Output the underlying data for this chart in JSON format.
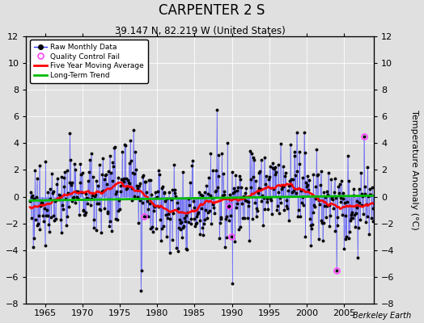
{
  "title": "CARPENTER 2 S",
  "subtitle": "39.147 N, 82.219 W (United States)",
  "ylabel": "Temperature Anomaly (°C)",
  "watermark": "Berkeley Earth",
  "year_start": 1963,
  "year_end": 2009,
  "ylim": [
    -8,
    12
  ],
  "yticks": [
    -8,
    -6,
    -4,
    -2,
    0,
    2,
    4,
    6,
    8,
    10,
    12
  ],
  "xticks": [
    1965,
    1970,
    1975,
    1980,
    1985,
    1990,
    1995,
    2000,
    2005
  ],
  "raw_color": "#3333FF",
  "moving_avg_color": "#FF0000",
  "trend_color": "#00BB00",
  "qc_fail_color": "#FF44FF",
  "background_color": "#E0E0E0",
  "grid_color": "#FFFFFF"
}
